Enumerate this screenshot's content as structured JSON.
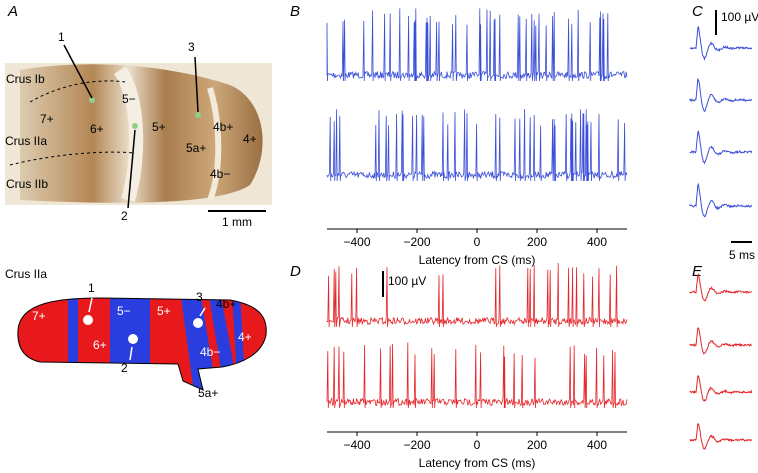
{
  "panels": {
    "A": {
      "label": "A",
      "regions": [
        "Crus Ib",
        "Crus IIa",
        "Crus IIb"
      ],
      "zones": [
        "7+",
        "6+",
        "5−",
        "5+",
        "4b+",
        "4+",
        "5a+",
        "4b−"
      ],
      "sites": [
        "1",
        "2",
        "3"
      ],
      "scale": "1 mm"
    },
    "map": {
      "title": "Crus IIa",
      "zones": [
        "7+",
        "6+",
        "5−",
        "5+",
        "4b+",
        "4+",
        "4b−",
        "5a+"
      ],
      "sites": [
        "1",
        "2",
        "3"
      ]
    },
    "B": {
      "label": "B",
      "xlim": [
        -500,
        500
      ],
      "xticks": [
        {
          "value": -400,
          "label": "−400"
        },
        {
          "value": -200,
          "label": "−200"
        },
        0,
        200,
        400
      ],
      "xlabel": "Latency from CS (ms)"
    },
    "C": {
      "label": "C",
      "scale_voltage": "100 µV",
      "scale_time": "5 ms"
    },
    "D": {
      "label": "D",
      "scale_voltage": "100 µV",
      "xlim": [
        -500,
        500
      ],
      "xticks": [
        {
          "value": -400,
          "label": "−400"
        },
        {
          "value": -200,
          "label": "−200"
        },
        0,
        200,
        400
      ],
      "xlabel": "Latency from CS (ms)"
    },
    "E": {
      "label": "E"
    }
  }
}
